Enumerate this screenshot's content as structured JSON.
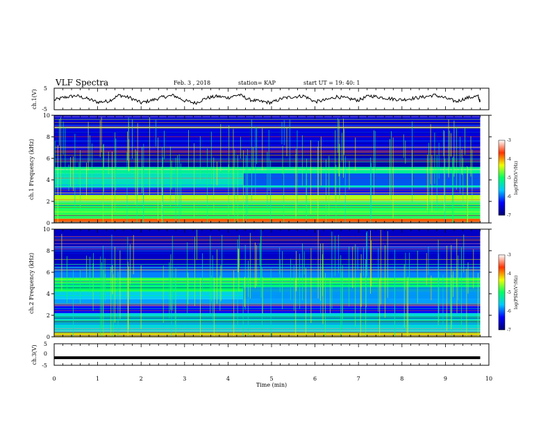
{
  "header": {
    "title": "VLF Spectra",
    "date": "Feb. 3 , 2018",
    "station": "station= KAP",
    "start_time": "start UT = 19: 40: 1"
  },
  "colors": {
    "colormap": [
      "#000070",
      "#0000ff",
      "#00c8ff",
      "#00ff66",
      "#f0ff00",
      "#ff3300",
      "#ffffff"
    ],
    "waveform": "#000000"
  },
  "chart_data": [
    {
      "type": "line",
      "name": "ch1 waveform",
      "ylabel": "ch.1(V)",
      "ylim": [
        -5,
        5
      ],
      "yticks": [
        "5",
        "-5"
      ],
      "xlim": [
        0,
        10
      ],
      "x": [
        0,
        0.25,
        0.5,
        0.75,
        1,
        1.25,
        1.5,
        1.75,
        2,
        2.25,
        2.5,
        2.75,
        3,
        3.25,
        3.5,
        3.75,
        4,
        4.25,
        4.5,
        4.75,
        5,
        5.25,
        5.5,
        5.75,
        6,
        6.25,
        6.5,
        6.75,
        7,
        7.25,
        7.5,
        7.75,
        8,
        8.25,
        8.5,
        8.75,
        9,
        9.25,
        9.5,
        9.75,
        9.8
      ],
      "y": [
        -0.5,
        0.8,
        1.5,
        0.2,
        -1.5,
        -1.0,
        1.8,
        0.5,
        -1.8,
        -0.6,
        0.9,
        1.6,
        -0.8,
        -1.9,
        0.4,
        1.2,
        0.6,
        2.0,
        -0.4,
        -1.2,
        -1.7,
        0.3,
        1.0,
        1.4,
        -1.3,
        -0.5,
        1.1,
        0.2,
        -0.6,
        1.5,
        0.8,
        0.1,
        -0.4,
        0.3,
        0.9,
        1.8,
        0.4,
        -1.2,
        0.5,
        1.3,
        -1.4
      ]
    },
    {
      "type": "heatmap",
      "name": "ch1 spectrogram",
      "ylabel": "ch.1 Frequency (kHz)",
      "ylim": [
        0,
        10
      ],
      "yticks": [
        "0",
        "2",
        "4",
        "6",
        "8",
        "10"
      ],
      "xlim": [
        0,
        10
      ],
      "colorbar": {
        "label": "log(PSD)(V²/Hz)",
        "range": [
          -7,
          -3
        ],
        "ticks": [
          "-3",
          "-4",
          "-5",
          "-6",
          "-7"
        ]
      },
      "bands": [
        {
          "f0": 0.0,
          "f1": 0.4,
          "level": -3.8
        },
        {
          "f0": 0.4,
          "f1": 1.3,
          "level": -4.9
        },
        {
          "f0": 1.3,
          "f1": 1.9,
          "level": -5.0
        },
        {
          "f0": 1.9,
          "f1": 2.6,
          "level": -4.5
        },
        {
          "f0": 2.6,
          "f1": 3.3,
          "level": -6.4
        },
        {
          "f0": 3.3,
          "f1": 4.6,
          "level": -5.4
        },
        {
          "f0": 4.6,
          "f1": 5.2,
          "level": -5.2
        },
        {
          "f0": 5.2,
          "f1": 6.6,
          "level": -6.7
        },
        {
          "f0": 6.6,
          "f1": 10.0,
          "level": -6.5
        }
      ]
    },
    {
      "type": "heatmap",
      "name": "ch2 spectrogram",
      "ylabel": "ch.2 Frequency (kHz)",
      "ylim": [
        0,
        10
      ],
      "yticks": [
        "0",
        "2",
        "4",
        "6",
        "8",
        "10"
      ],
      "xlim": [
        0,
        10
      ],
      "colorbar": {
        "label": "log(PSD)(V²/Hz)",
        "range": [
          -7,
          -3
        ],
        "ticks": [
          "-3",
          "-4",
          "-5",
          "-6",
          "-7"
        ]
      },
      "bands": [
        {
          "f0": 0.0,
          "f1": 0.4,
          "level": -4.2
        },
        {
          "f0": 0.4,
          "f1": 2.2,
          "level": -5.5
        },
        {
          "f0": 2.2,
          "f1": 3.0,
          "level": -6.3
        },
        {
          "f0": 3.0,
          "f1": 3.5,
          "level": -5.8
        },
        {
          "f0": 3.5,
          "f1": 4.2,
          "level": -5.6
        },
        {
          "f0": 4.2,
          "f1": 5.5,
          "level": -5.0
        },
        {
          "f0": 5.5,
          "f1": 6.5,
          "level": -5.9
        },
        {
          "f0": 6.5,
          "f1": 10.0,
          "level": -6.6
        }
      ]
    },
    {
      "type": "line",
      "name": "ch3 waveform",
      "ylabel": "ch.3(V)",
      "ylim": [
        -5,
        5
      ],
      "yticks": [
        "5",
        "0",
        "-5"
      ],
      "xlim": [
        0,
        10
      ],
      "x": [
        0,
        9.8
      ],
      "y": [
        -1.5,
        -1.5
      ]
    }
  ],
  "x_axis": {
    "label": "Time (min)",
    "ticks": [
      "0",
      "1",
      "2",
      "3",
      "4",
      "5",
      "6",
      "7",
      "8",
      "9",
      "10"
    ]
  }
}
